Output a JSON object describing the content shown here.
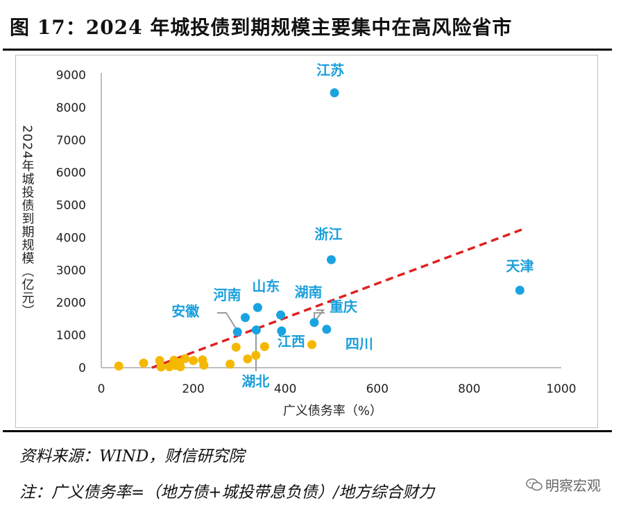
{
  "figure": {
    "title": "图 17：2024 年城投债到期规模主要集中在高风险省市"
  },
  "notes": {
    "source": "资料来源：WIND，财信研究院",
    "definition": "注：广义债务率=（地方债+城投带息负债）/地方综合财力"
  },
  "watermark": {
    "text": "明察宏观",
    "icon": "wechat-icon"
  },
  "colors": {
    "blue": "#1aa3e0",
    "orange": "#f5b800",
    "trend": "#e02020",
    "label": "#1a9fdb",
    "axis": "#bfbfbf"
  },
  "chart_data": {
    "type": "scatter",
    "xlabel": "广义债务率（%）",
    "ylabel": "2024年城投债到期规模（亿元）",
    "xlim": [
      0,
      1000
    ],
    "ylim": [
      0,
      9000
    ],
    "x_ticks": [
      "0",
      "200",
      "400",
      "600",
      "800",
      "1000"
    ],
    "y_ticks": [
      "0",
      "1000",
      "2000",
      "3000",
      "4000",
      "5000",
      "6000",
      "7000",
      "8000",
      "9000"
    ],
    "grid": false,
    "legend": "none",
    "series": [
      {
        "color": "blue",
        "points": [
          {
            "label": "江苏",
            "x": 507,
            "y": 8450
          },
          {
            "label": "浙江",
            "x": 500,
            "y": 3320
          },
          {
            "label": "天津",
            "x": 910,
            "y": 2380
          },
          {
            "label": "山东",
            "x": 340,
            "y": 1850
          },
          {
            "label": "河南",
            "x": 313,
            "y": 1540
          },
          {
            "label": "湖南",
            "x": 390,
            "y": 1620
          },
          {
            "label": "重庆",
            "x": 463,
            "y": 1390
          },
          {
            "label": "四川",
            "x": 490,
            "y": 1180
          },
          {
            "label": "江西",
            "x": 392,
            "y": 1130
          },
          {
            "label": "安徽",
            "x": 296,
            "y": 1100
          },
          {
            "label": "湖北",
            "x": 337,
            "y": 1160
          }
        ]
      },
      {
        "color": "orange",
        "points": [
          {
            "x": 38,
            "y": 50
          },
          {
            "x": 92,
            "y": 140
          },
          {
            "x": 127,
            "y": 220
          },
          {
            "x": 130,
            "y": 20
          },
          {
            "x": 148,
            "y": 30
          },
          {
            "x": 158,
            "y": 230
          },
          {
            "x": 162,
            "y": 70
          },
          {
            "x": 170,
            "y": 160
          },
          {
            "x": 172,
            "y": 30
          },
          {
            "x": 182,
            "y": 280
          },
          {
            "x": 200,
            "y": 220
          },
          {
            "x": 220,
            "y": 240
          },
          {
            "x": 223,
            "y": 80
          },
          {
            "x": 280,
            "y": 110
          },
          {
            "x": 293,
            "y": 630
          },
          {
            "x": 318,
            "y": 270
          },
          {
            "x": 336,
            "y": 380
          },
          {
            "x": 355,
            "y": 650
          },
          {
            "x": 458,
            "y": 710
          }
        ]
      }
    ],
    "trendline": {
      "style": "dashed",
      "points": [
        {
          "x": 110,
          "y": 0
        },
        {
          "x": 915,
          "y": 4250
        }
      ]
    }
  }
}
